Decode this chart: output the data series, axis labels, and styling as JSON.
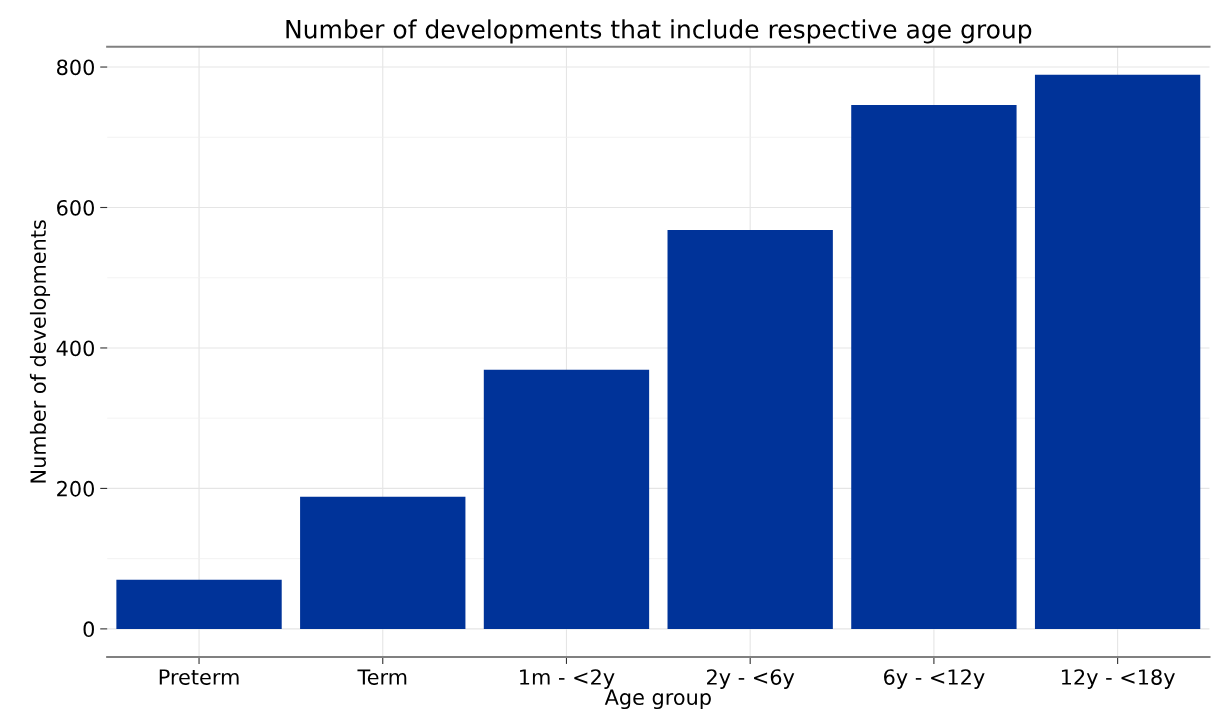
{
  "chart_data": {
    "type": "bar",
    "title": "Number of developments that include respective age group",
    "xlabel": "Age group",
    "ylabel": "Number of developments",
    "categories": [
      "Preterm",
      "Term",
      "1m - <2y",
      "2y - <6y",
      "6y - <12y",
      "12y - <18y"
    ],
    "values": [
      70,
      188,
      369,
      568,
      746,
      789
    ],
    "color": "#003399",
    "ylim": [
      -40,
      829
    ],
    "yticks": [
      0,
      200,
      400,
      600,
      800
    ],
    "grid": true
  }
}
